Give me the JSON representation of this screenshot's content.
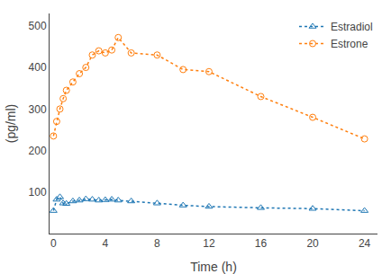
{
  "chart_data": {
    "type": "line",
    "x_label": "Time (h)",
    "y_label": "(pg/ml)",
    "series": [
      {
        "name": "Estradiol",
        "marker": "triangle",
        "line_style": "dotted",
        "x": [
          0,
          0.25,
          0.5,
          0.75,
          1.0,
          1.5,
          2.0,
          2.5,
          3.0,
          3.5,
          4.0,
          4.5,
          5.0,
          6.0,
          8.0,
          10.0,
          12.0,
          16.0,
          20.0,
          24.0
        ],
        "values": [
          55,
          82,
          88,
          73,
          72,
          78,
          80,
          83,
          82,
          80,
          81,
          82,
          80,
          78,
          73,
          68,
          65,
          62,
          60,
          55
        ]
      },
      {
        "name": "Estrone",
        "marker": "circle",
        "line_style": "dotted",
        "x": [
          0,
          0.25,
          0.5,
          0.75,
          1.0,
          1.5,
          2.0,
          2.5,
          3.0,
          3.5,
          4.0,
          4.5,
          5.0,
          6.0,
          8.0,
          10.0,
          12.0,
          16.0,
          20.0,
          24.0
        ],
        "values": [
          235,
          270,
          300,
          325,
          345,
          365,
          385,
          400,
          430,
          440,
          435,
          442,
          472,
          435,
          430,
          395,
          390,
          330,
          280,
          228
        ]
      }
    ],
    "xlim": [
      -0.3,
      25
    ],
    "xticks": [
      0,
      4,
      8,
      12,
      16,
      20,
      24
    ],
    "ylim": [
      0,
      530
    ],
    "yticks": [
      100,
      200,
      300,
      400,
      500
    ],
    "legend": "upper right",
    "grid": false
  }
}
